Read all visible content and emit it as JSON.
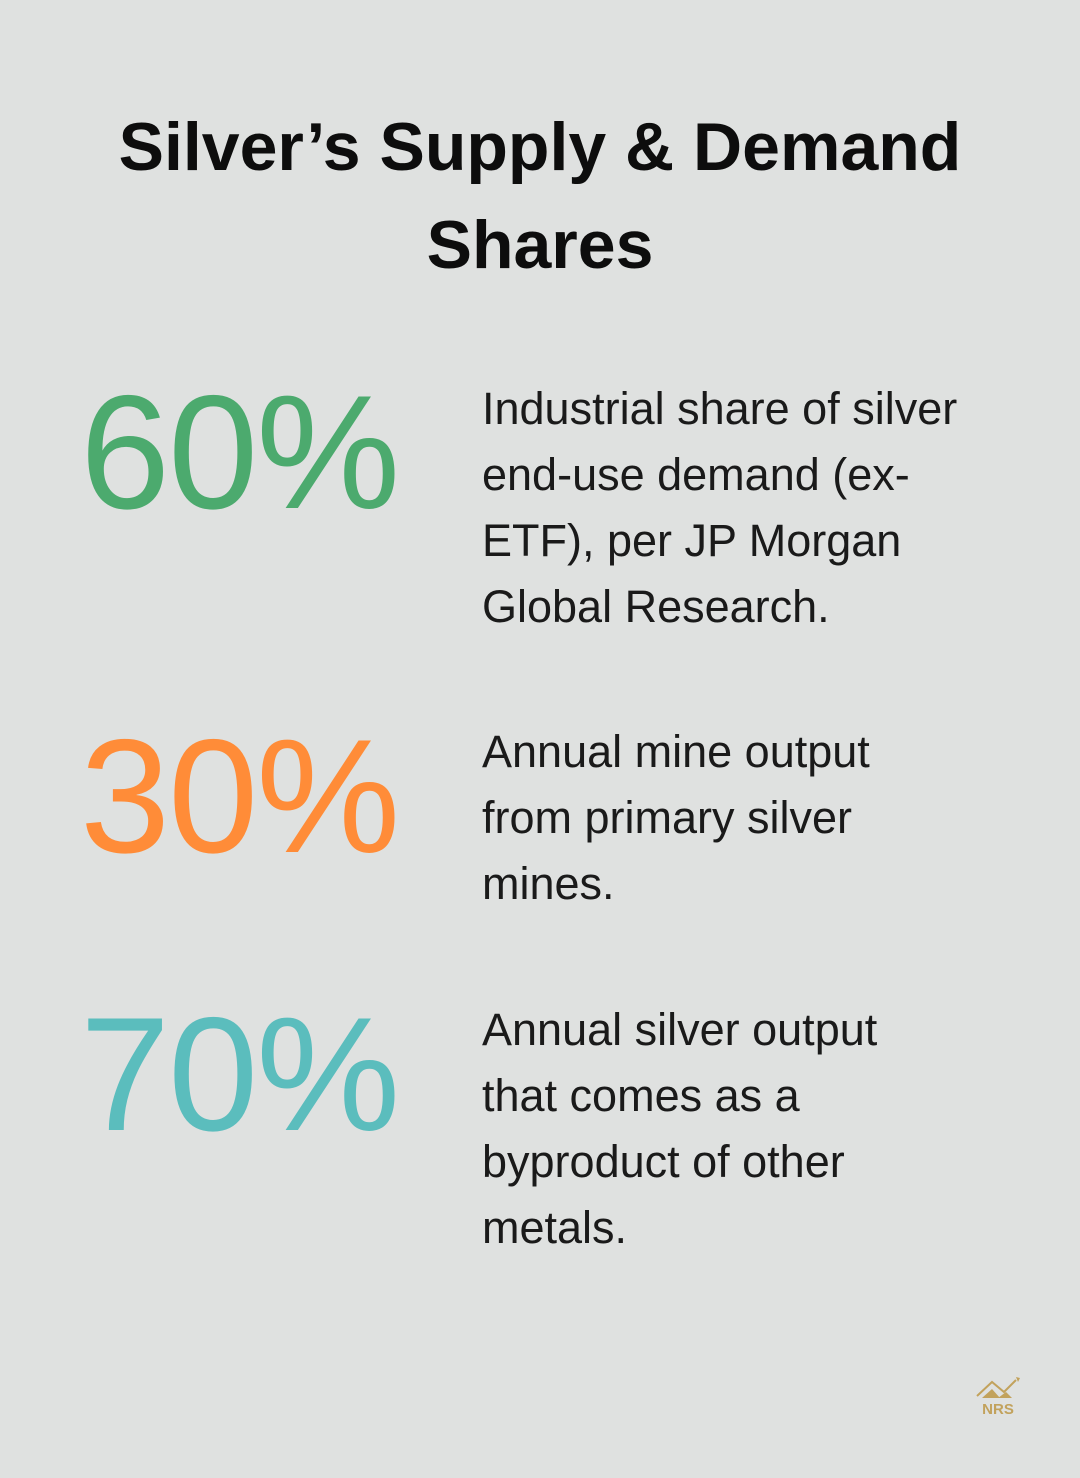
{
  "title": {
    "lines": [
      "Silver’s Supply & Demand",
      "Shares"
    ]
  },
  "stats": [
    {
      "value": "60%",
      "color": "#4caa6e",
      "description_lines": [
        "Industrial share of silver",
        "end-use demand (ex-",
        "ETF), per JP Morgan",
        "Global Research."
      ]
    },
    {
      "value": "30%",
      "color": "#ff8c38",
      "description_lines": [
        "Annual mine output",
        "from primary silver",
        "mines."
      ]
    },
    {
      "value": "70%",
      "color": "#5bbdbd",
      "description_lines": [
        "Annual silver output",
        "that comes as a",
        "byproduct of other",
        "metals."
      ]
    }
  ],
  "logo": {
    "text": "NRS",
    "color": "#c2a25c"
  }
}
